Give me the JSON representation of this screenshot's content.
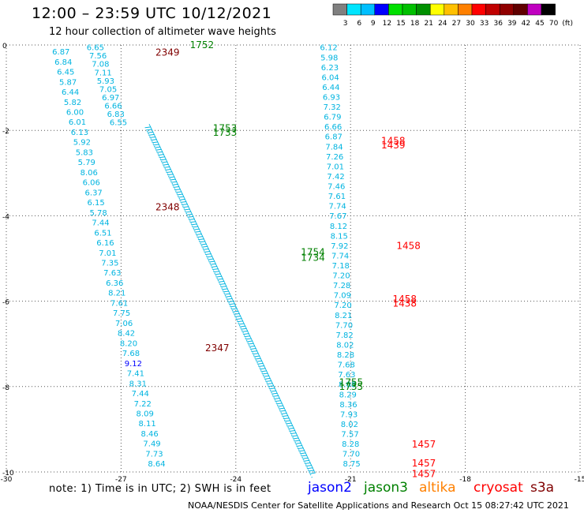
{
  "header": {
    "title": "12:00 – 23:59 UTC 10/12/2021",
    "subtitle": "12 hour collection of altimeter wave heights"
  },
  "color_scale": {
    "labels": [
      "3",
      "6",
      "9",
      "12",
      "15",
      "18",
      "21",
      "24",
      "27",
      "30",
      "33",
      "36",
      "39",
      "42",
      "45",
      "70",
      "(ft)"
    ],
    "colors": [
      "#808080",
      "#00e5ff",
      "#00bfff",
      "#0000ff",
      "#00e000",
      "#00c000",
      "#009000",
      "#ffff00",
      "#ffc000",
      "#ff8000",
      "#ff0000",
      "#c00000",
      "#900000",
      "#600000",
      "#c000c0",
      "#000000"
    ]
  },
  "footer": {
    "note": "note: 1) Time is in UTC; 2) SWH is in feet",
    "legend": [
      {
        "name": "jason2",
        "color": "#0000ff"
      },
      {
        "name": "jason3",
        "color": "#008000"
      },
      {
        "name": "altika",
        "color": "#ff8000"
      },
      {
        "name": "cryosat",
        "color": "#ff0000"
      },
      {
        "name": "s3a",
        "color": "#800000"
      }
    ],
    "credit": "NOAA/NESDIS Center for Satellite Applications and Research    Oct 15 08:27:42 UTC 2021"
  },
  "colors": {
    "swh": "#00b4e0",
    "jason2": "#0000ff",
    "jason3": "#008000",
    "cryosat": "#ff0000",
    "s3a": "#800000",
    "grid": "#555555"
  },
  "chart_data": {
    "type": "scatter",
    "xlim": [
      -30,
      -15
    ],
    "ylim": [
      -10,
      0
    ],
    "xticks": [
      -30,
      -27,
      -24,
      -21,
      -18,
      -15
    ],
    "yticks": [
      0,
      -2,
      -4,
      -6,
      -8,
      -10
    ],
    "grid": true,
    "swh_tracks": [
      {
        "x0": -28.8,
        "y0": -0.15,
        "x1": -26.3,
        "y1": -9.8,
        "values": [
          "6.87",
          "6.84",
          "6.45",
          "5.87",
          "6.44",
          "5.82",
          "6.00",
          "6.01",
          "6.13",
          "5.92",
          "5.83",
          "5.79",
          "8.06",
          "6.06",
          "6.37",
          "6.15",
          "5.78",
          "7.44",
          "6.51",
          "6.16",
          "7.01",
          "7.35",
          "7.63",
          "6.36",
          "8.21",
          "7.61",
          "7.75",
          "7.06",
          "8.42",
          "8.20",
          "7.68",
          "9.12",
          "7.41",
          "8.31",
          "7.44",
          "7.22",
          "8.09",
          "8.11",
          "8.46",
          "7.49",
          "7.73",
          "8.64"
        ],
        "highlight": {
          "value": "9.12",
          "color_key": "jason2"
        }
      },
      {
        "x0": -27.9,
        "y0": -0.05,
        "x1": -27.3,
        "y1": -1.8,
        "values": [
          "6.65",
          "7.56",
          "7.08",
          "7.11",
          "5.93",
          "7.05",
          "6.97",
          "6.66",
          "6.83",
          "6.55"
        ]
      },
      {
        "x0": -21.8,
        "y0": -0.05,
        "x1": -21.2,
        "y1": -9.8,
        "values": [
          "6.12",
          "5.98",
          "6.23",
          "6.04",
          "6.44",
          "6.93",
          "7.32",
          "6.79",
          "6.66",
          "6.87",
          "7.84",
          "7.26",
          "7.01",
          "7.42",
          "7.46",
          "7.61",
          "7.74",
          "7.67",
          "8.12",
          "8.15",
          "7.92",
          "7.74",
          "7.18",
          "7.20",
          "7.28",
          "7.09",
          "7.20",
          "8.21",
          "7.70",
          "7.82",
          "8.02",
          "8.28",
          "7.68",
          "7.63",
          "8.08",
          "8.29",
          "8.36",
          "7.93",
          "8.02",
          "7.57",
          "8.28",
          "7.70",
          "8.75"
        ]
      }
    ],
    "dense_track": {
      "x0": -26.4,
      "y0": -1.9,
      "x1": -22.1,
      "y1": -10.0,
      "count": 140
    },
    "pass_labels": [
      {
        "x": -25.2,
        "y": 0.0,
        "text": "1752",
        "sat": "jason3"
      },
      {
        "x": -26.1,
        "y": -0.18,
        "text": "2349",
        "sat": "s3a"
      },
      {
        "x": -24.6,
        "y": -1.95,
        "text": "1753",
        "sat": "jason3"
      },
      {
        "x": -24.6,
        "y": -2.05,
        "text": "1733",
        "sat": "jason3"
      },
      {
        "x": -20.2,
        "y": -2.25,
        "text": "1458",
        "sat": "cryosat"
      },
      {
        "x": -20.2,
        "y": -2.35,
        "text": "1439",
        "sat": "cryosat"
      },
      {
        "x": -26.1,
        "y": -3.8,
        "text": "2348",
        "sat": "s3a"
      },
      {
        "x": -19.8,
        "y": -4.7,
        "text": "1458",
        "sat": "cryosat"
      },
      {
        "x": -22.3,
        "y": -4.85,
        "text": "1754",
        "sat": "jason3"
      },
      {
        "x": -22.3,
        "y": -4.98,
        "text": "1734",
        "sat": "jason3"
      },
      {
        "x": -19.9,
        "y": -5.95,
        "text": "1458",
        "sat": "cryosat"
      },
      {
        "x": -19.9,
        "y": -6.05,
        "text": "1438",
        "sat": "cryosat"
      },
      {
        "x": -24.8,
        "y": -7.1,
        "text": "2347",
        "sat": "s3a"
      },
      {
        "x": -21.3,
        "y": -7.9,
        "text": "1755",
        "sat": "jason3"
      },
      {
        "x": -21.3,
        "y": -8.0,
        "text": "1735",
        "sat": "jason3"
      },
      {
        "x": -19.4,
        "y": -9.35,
        "text": "1457",
        "sat": "cryosat"
      },
      {
        "x": -19.4,
        "y": -9.8,
        "text": "1457",
        "sat": "cryosat"
      },
      {
        "x": -19.4,
        "y": -10.05,
        "text": "1457",
        "sat": "cryosat"
      }
    ]
  }
}
